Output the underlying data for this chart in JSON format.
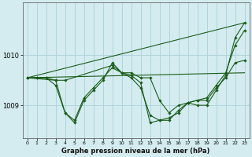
{
  "background_color": "#d4ecf0",
  "grid_color": "#afd4da",
  "line_color": "#1a5c1a",
  "title": "Graphe pression niveau de la mer (hPa)",
  "xlim": [
    -0.5,
    23.5
  ],
  "ylim": [
    1008.35,
    1011.05
  ],
  "yticks": [
    1009,
    1010
  ],
  "xticks": [
    0,
    1,
    2,
    3,
    4,
    5,
    6,
    7,
    8,
    9,
    10,
    11,
    12,
    13,
    14,
    15,
    16,
    17,
    18,
    19,
    20,
    21,
    22,
    23
  ],
  "series_dotted": [
    {
      "x": [
        0,
        1,
        2,
        3,
        4,
        5,
        6,
        7,
        8,
        9,
        10,
        11,
        12,
        13,
        14,
        15,
        16,
        17,
        18,
        19,
        20,
        21,
        22,
        23
      ],
      "y": [
        1009.55,
        1009.55,
        1009.55,
        1009.5,
        1008.85,
        1008.7,
        1009.15,
        1009.35,
        1009.55,
        1009.75,
        1009.65,
        1009.65,
        1009.55,
        1009.55,
        1009.1,
        1008.85,
        1009.0,
        1009.05,
        1009.1,
        1009.1,
        1009.35,
        1009.55,
        1009.85,
        1009.9
      ]
    },
    {
      "x": [
        0,
        1,
        2,
        3,
        4,
        5,
        6,
        7,
        8,
        9,
        10,
        11,
        12,
        13,
        14,
        15,
        16,
        17,
        18,
        19,
        20,
        21,
        22,
        23
      ],
      "y": [
        1009.55,
        1009.55,
        1009.55,
        1009.4,
        1008.85,
        1008.65,
        1009.1,
        1009.3,
        1009.5,
        1009.85,
        1009.65,
        1009.55,
        1009.35,
        1008.8,
        1008.7,
        1008.75,
        1008.85,
        1009.05,
        1009.1,
        1009.15,
        1009.4,
        1009.65,
        1010.2,
        1010.5
      ]
    },
    {
      "x": [
        0,
        3,
        4,
        9,
        10,
        11,
        12,
        13,
        14,
        15,
        16,
        17,
        18,
        19,
        20,
        21,
        22,
        23
      ],
      "y": [
        1009.55,
        1009.5,
        1009.5,
        1009.8,
        1009.65,
        1009.6,
        1009.45,
        1008.65,
        1008.7,
        1008.7,
        1008.9,
        1009.05,
        1009.0,
        1009.0,
        1009.3,
        1009.6,
        1010.35,
        1010.65
      ]
    }
  ],
  "series_line": [
    {
      "x": [
        0,
        23
      ],
      "y": [
        1009.55,
        1009.65
      ]
    },
    {
      "x": [
        0,
        23
      ],
      "y": [
        1009.55,
        1010.65
      ]
    }
  ]
}
